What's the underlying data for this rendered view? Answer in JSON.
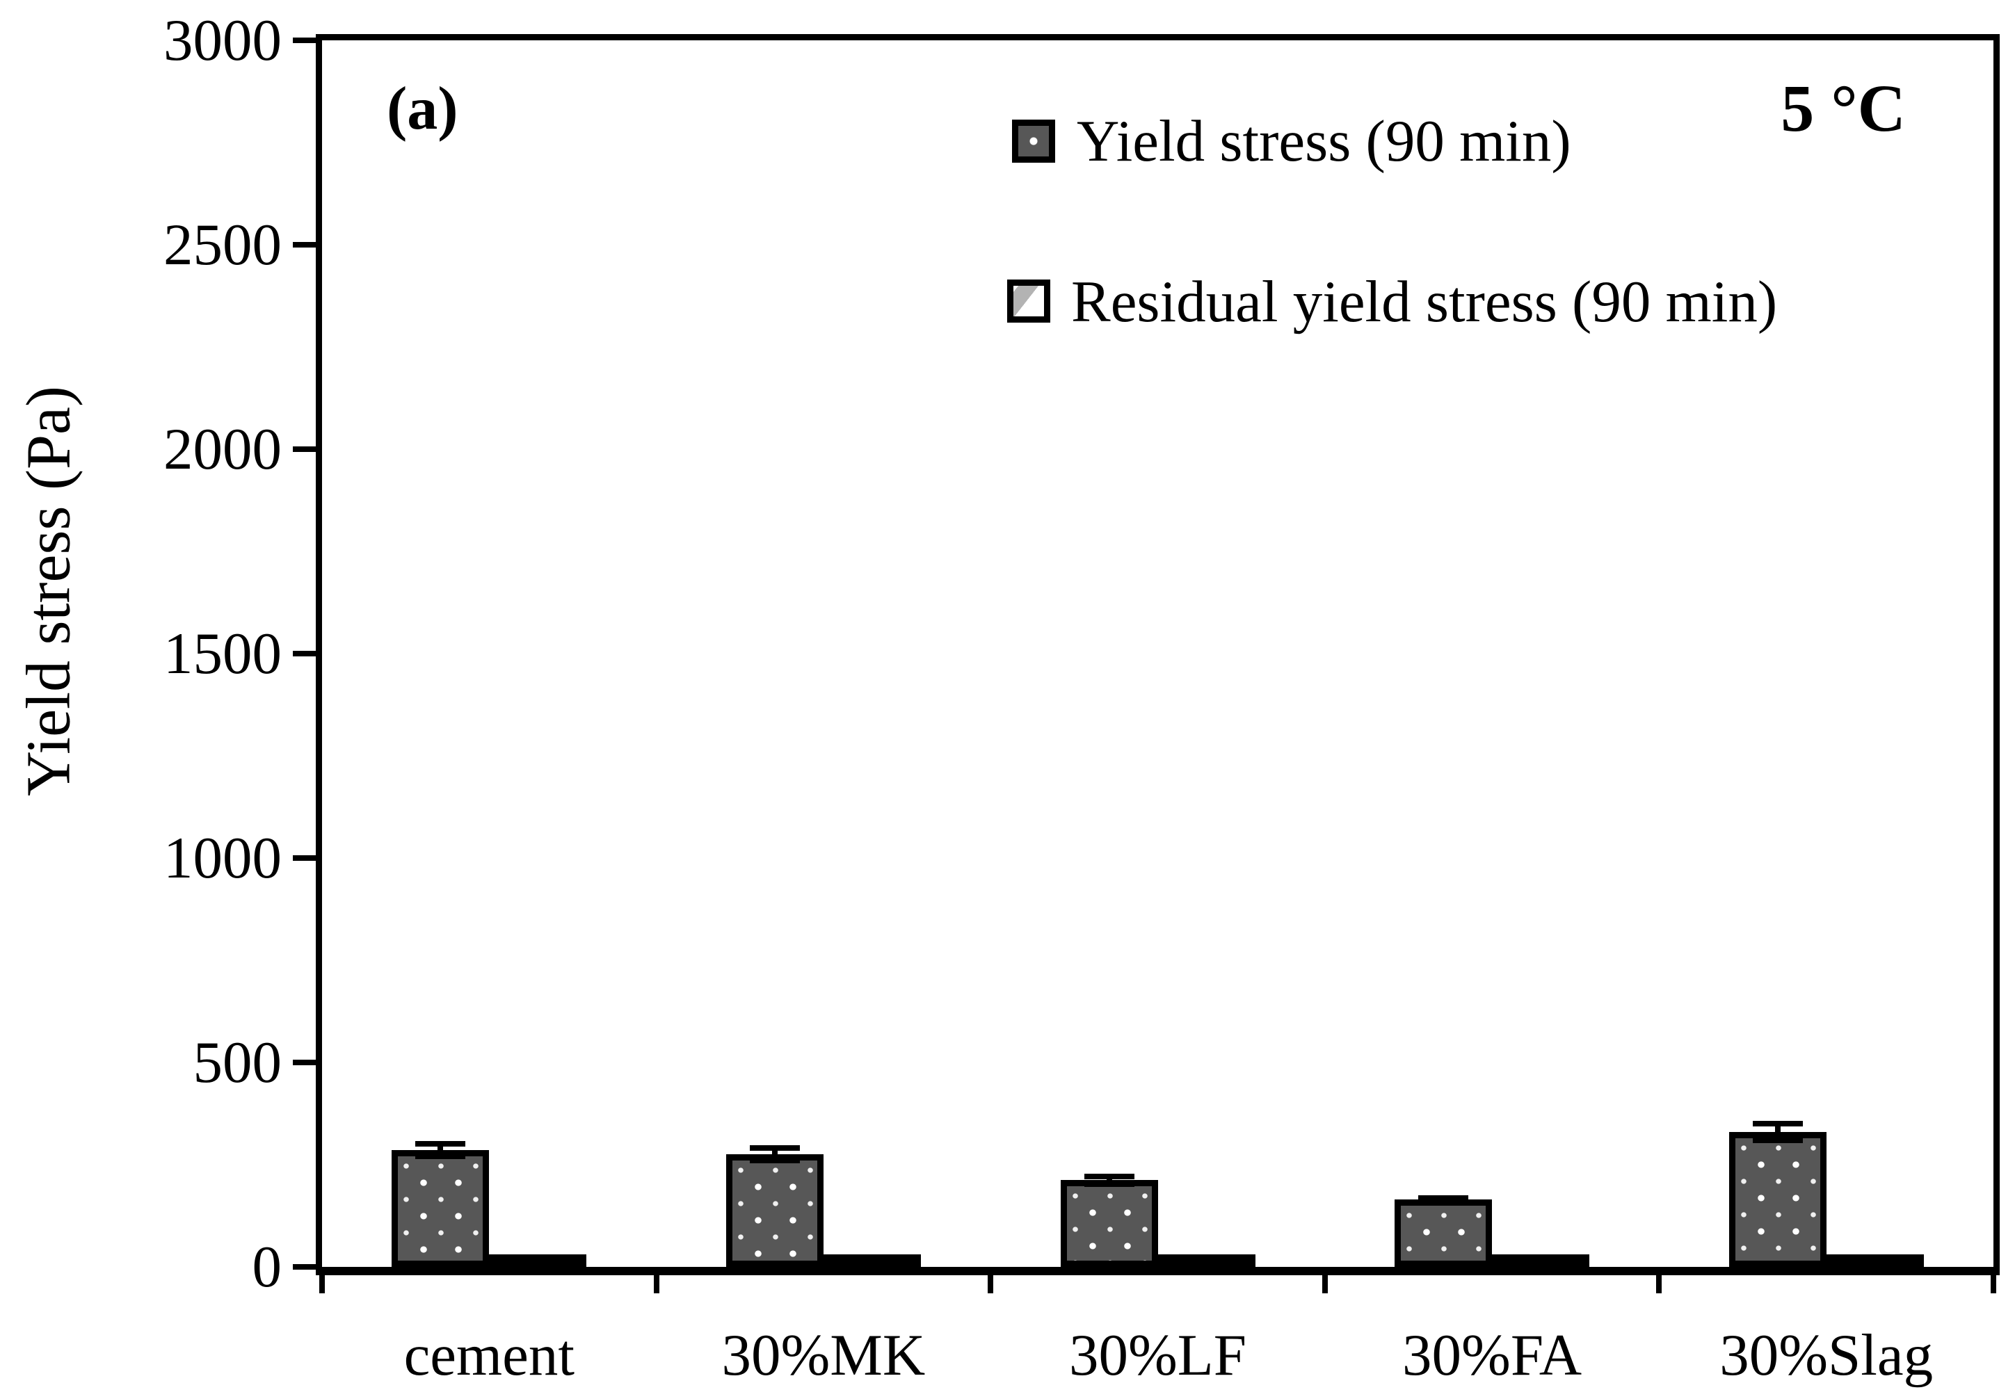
{
  "panel_label": "(a)",
  "temperature_label": "5 °C",
  "legend": {
    "yield_label": "Yield stress (90 min)",
    "residual_label": "Residual yield stress (90 min)"
  },
  "y_axis": {
    "label": "Yield stress (Pa)",
    "min": 0,
    "max": 3000,
    "tick_step": 500,
    "ticks": [
      0,
      500,
      1000,
      1500,
      2000,
      2500,
      3000
    ]
  },
  "chart_data": {
    "type": "bar",
    "title": "",
    "categories": [
      "cement",
      "30%MK",
      "30%LF",
      "30%FA",
      "30%Slag"
    ],
    "series": [
      {
        "name": "Yield stress (90 min)",
        "values": [
          285,
          275,
          212,
          165,
          330
        ],
        "errors": [
          22,
          22,
          16,
          10,
          28
        ],
        "style": "dark-gray-dotted"
      },
      {
        "name": "Residual yield stress (90 min)",
        "values": [
          25,
          30,
          15,
          15,
          25
        ],
        "errors": [
          0,
          0,
          0,
          0,
          0
        ],
        "style": "white-diagonal-stripe"
      }
    ],
    "xlabel": "",
    "ylabel": "Yield stress (Pa)",
    "ylim": [
      0,
      3000
    ],
    "grid": false,
    "legend_position": "top-center-inside",
    "annotations": [
      "(a)",
      "5 °C"
    ]
  },
  "colors": {
    "bar_dark_fill": "#575757",
    "bar_border": "#000000",
    "residual_fill": "#ffffff",
    "stripe_gray": "#b3b3b3",
    "background": "#ffffff"
  }
}
